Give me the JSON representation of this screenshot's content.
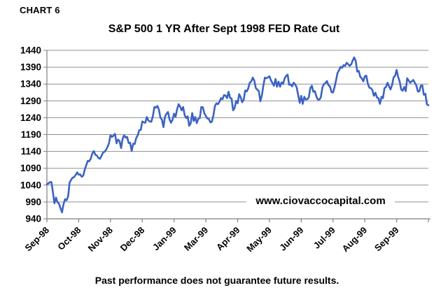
{
  "page": {
    "chart_label": "CHART 6",
    "disclaimer": "Past performance does not guarantee future results."
  },
  "colors": {
    "background": "#ffffff",
    "gridline": "#8f8f8f",
    "axis": "#7f7f7f",
    "text": "#000000",
    "series_blue": "#3b62c4"
  },
  "chart_data": {
    "type": "line",
    "title": "S&P 500 1 YR After Sept 1998 FED Rate Cut",
    "watermark": "www.ciovaccocapital.com",
    "xlabel": "",
    "ylabel": "",
    "ylim": [
      940,
      1440
    ],
    "y_ticks": [
      940,
      990,
      1040,
      1090,
      1140,
      1190,
      1240,
      1290,
      1340,
      1390,
      1440
    ],
    "x_tick_labels": [
      "Sep-98",
      "Oct-98",
      "Nov-98",
      "Dec-98",
      "Jan-99",
      "Mar-99",
      "Apr-99",
      "May-99",
      "Jun-99",
      "Jul-99",
      "Aug-99",
      "Sep-99"
    ],
    "x_tick_point_interval": 21,
    "grid": "horizontal-only",
    "legend_position": "none",
    "series": [
      {
        "name": "S&P 500 daily close, Sep 1998 - Sep 1999",
        "color": "#3b62c4",
        "values": [
          1043,
          1045,
          1049,
          1049,
          1017,
          986,
          1003,
          989,
          985,
          971,
          959,
          984,
          998,
          995,
          1006,
          1047,
          1056,
          1062,
          1064,
          1070,
          1078,
          1071,
          1072,
          1065,
          1068,
          1086,
          1099,
          1112,
          1111,
          1119,
          1134,
          1141,
          1130,
          1128,
          1121,
          1118,
          1126,
          1136,
          1139,
          1144,
          1153,
          1164,
          1188,
          1183,
          1187,
          1192,
          1164,
          1175,
          1171,
          1150,
          1177,
          1188,
          1181,
          1183,
          1165,
          1166,
          1141,
          1163,
          1162,
          1180,
          1188,
          1203,
          1204,
          1229,
          1226,
          1225,
          1242,
          1232,
          1229,
          1228,
          1245,
          1272,
          1270,
          1275,
          1264,
          1240,
          1234,
          1212,
          1243,
          1252,
          1257,
          1235,
          1225,
          1234,
          1252,
          1243,
          1265,
          1280,
          1273,
          1262,
          1272,
          1248,
          1239,
          1244,
          1216,
          1224,
          1254,
          1230,
          1242,
          1224,
          1237,
          1239,
          1272,
          1271,
          1253,
          1245,
          1238,
          1236,
          1226,
          1228,
          1247,
          1275,
          1283,
          1280,
          1287,
          1298,
          1295,
          1307,
          1306,
          1298,
          1317,
          1299,
          1297,
          1262,
          1269,
          1290,
          1283,
          1310,
          1301,
          1286,
          1294,
          1321,
          1318,
          1327,
          1344,
          1348,
          1359,
          1350,
          1328,
          1323,
          1319,
          1289,
          1306,
          1336,
          1359,
          1357,
          1360,
          1363,
          1351,
          1343,
          1335,
          1355,
          1332,
          1347,
          1332,
          1345,
          1340,
          1356,
          1364,
          1368,
          1338,
          1339,
          1333,
          1344,
          1339,
          1330,
          1307,
          1284,
          1305,
          1281,
          1302,
          1294,
          1295,
          1300,
          1328,
          1335,
          1317,
          1319,
          1303,
          1294,
          1294,
          1301,
          1330,
          1340,
          1343,
          1349,
          1336,
          1333,
          1316,
          1315,
          1331,
          1351,
          1373,
          1381,
          1391,
          1388,
          1396,
          1394,
          1403,
          1399,
          1394,
          1398,
          1410,
          1419,
          1408,
          1377,
          1379,
          1361,
          1357,
          1348,
          1363,
          1365,
          1341,
          1329,
          1328,
          1322,
          1305,
          1314,
          1300,
          1298,
          1281,
          1302,
          1298,
          1328,
          1331,
          1344,
          1333,
          1324,
          1337,
          1360,
          1364,
          1382,
          1362,
          1348,
          1324,
          1320,
          1331,
          1319,
          1357,
          1350,
          1344,
          1348,
          1352,
          1344,
          1336,
          1318,
          1318,
          1335,
          1336,
          1308,
          1311,
          1280,
          1277
        ]
      }
    ]
  }
}
